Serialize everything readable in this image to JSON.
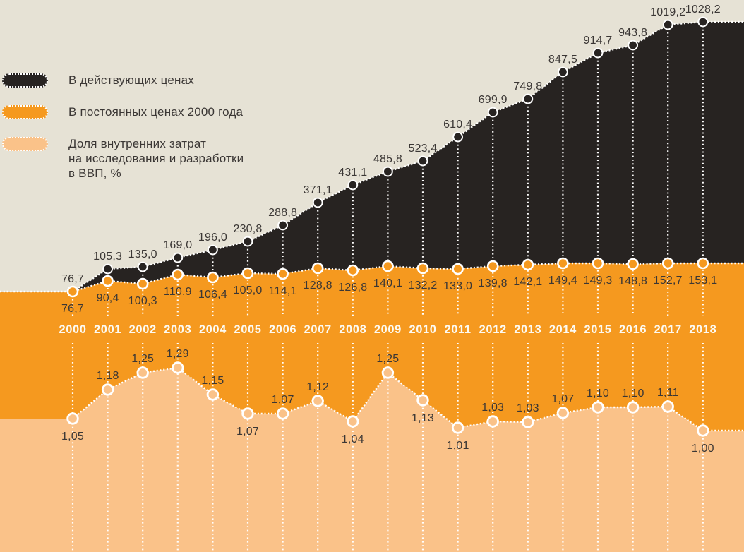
{
  "legend": {
    "items": [
      {
        "label": "В действующих ценах",
        "color": "#272321"
      },
      {
        "label": "В постоянных ценах 2000 года",
        "color": "#F5991F"
      },
      {
        "label": "Доля внутренних затрат\nна исследования и разработки\nв ВВП, %",
        "color": "#FAC289"
      }
    ]
  },
  "chart_data": {
    "type": "area",
    "title": "",
    "categories": [
      "2000",
      "2001",
      "2002",
      "2003",
      "2004",
      "2005",
      "2006",
      "2007",
      "2008",
      "2009",
      "2010",
      "2011",
      "2012",
      "2013",
      "2014",
      "2015",
      "2016",
      "2017",
      "2018"
    ],
    "series": [
      {
        "name": "В действующих ценах",
        "color": "#272321",
        "decimals": 1,
        "values": [
          76.7,
          105.3,
          135.0,
          169.0,
          196.0,
          230.8,
          288.8,
          371.1,
          431.1,
          485.8,
          523.4,
          610.4,
          699.9,
          749.8,
          847.5,
          914.7,
          943.8,
          1019.2,
          1028.2
        ]
      },
      {
        "name": "В постоянных ценах 2000 года",
        "color": "#F5991F",
        "decimals": 1,
        "values": [
          76.7,
          90.4,
          100.3,
          110.9,
          106.4,
          105.0,
          114.1,
          128.8,
          126.8,
          140.1,
          132.2,
          133.0,
          139.8,
          142.1,
          149.4,
          149.3,
          148.8,
          152.7,
          153.1
        ]
      },
      {
        "name": "Доля внутренних затрат на исследования и разработки в ВВП, %",
        "color": "#FAC289",
        "decimals": 2,
        "values": [
          1.05,
          1.18,
          1.25,
          1.29,
          1.15,
          1.07,
          1.07,
          1.12,
          1.04,
          1.25,
          1.13,
          1.01,
          1.03,
          1.03,
          1.07,
          1.1,
          1.1,
          1.11,
          1.0
        ]
      }
    ],
    "decimal_separator": ",",
    "legend_position": "top-left",
    "grid": "dotted-white-vertical-guides",
    "background": "#E6E2D5"
  },
  "colors": {
    "background": "#E6E2D5",
    "series_current": "#272321",
    "series_constant": "#F5991F",
    "series_share": "#FAC289",
    "guides": "#FFFFFF",
    "value_label": "#3B3735",
    "year_label": "#FCFAF2"
  }
}
